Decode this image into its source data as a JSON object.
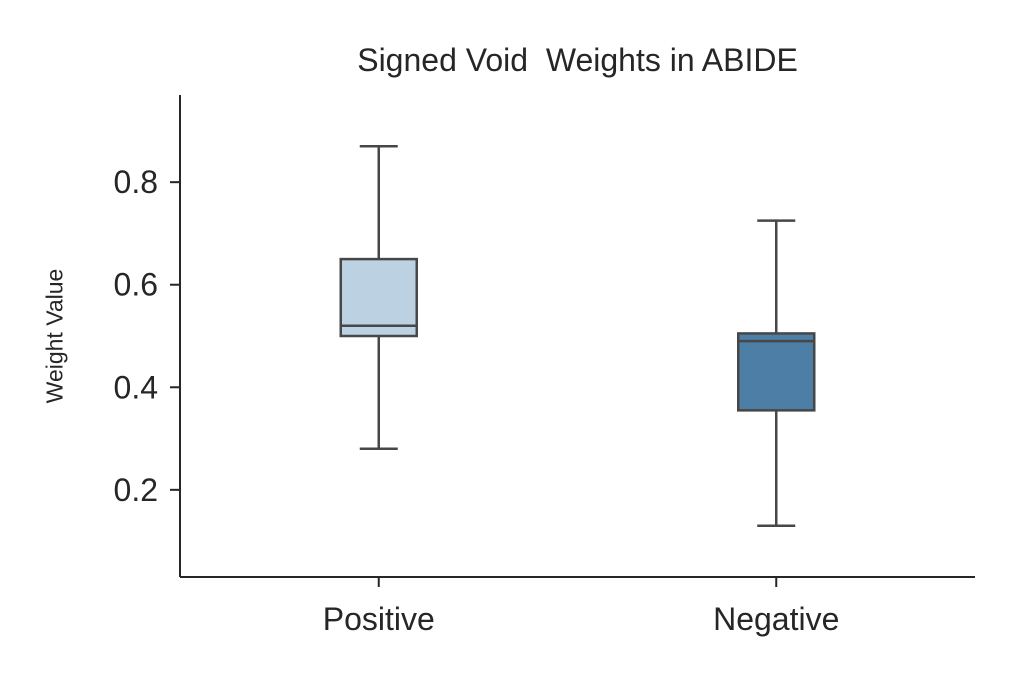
{
  "chart_data": {
    "type": "boxplot",
    "title": "Signed Void  Weights in ABIDE",
    "ylabel": "Weight Value",
    "xlabel": "",
    "categories": [
      "Positive",
      "Negative"
    ],
    "yticks": [
      0.2,
      0.4,
      0.6,
      0.8
    ],
    "ylim": [
      0.03,
      0.97
    ],
    "grid": false,
    "legend": "none",
    "series": [
      {
        "name": "Positive",
        "whisker_low": 0.28,
        "q1": 0.5,
        "median": 0.52,
        "q3": 0.65,
        "whisker_high": 0.87,
        "fill": "#bcd2e2"
      },
      {
        "name": "Negative",
        "whisker_low": 0.13,
        "q1": 0.355,
        "median": 0.49,
        "q3": 0.505,
        "whisker_high": 0.725,
        "fill": "#4d7ea6"
      }
    ],
    "colors": {
      "box_edge": "#474747",
      "axis": "#262626",
      "text": "#262626"
    }
  }
}
